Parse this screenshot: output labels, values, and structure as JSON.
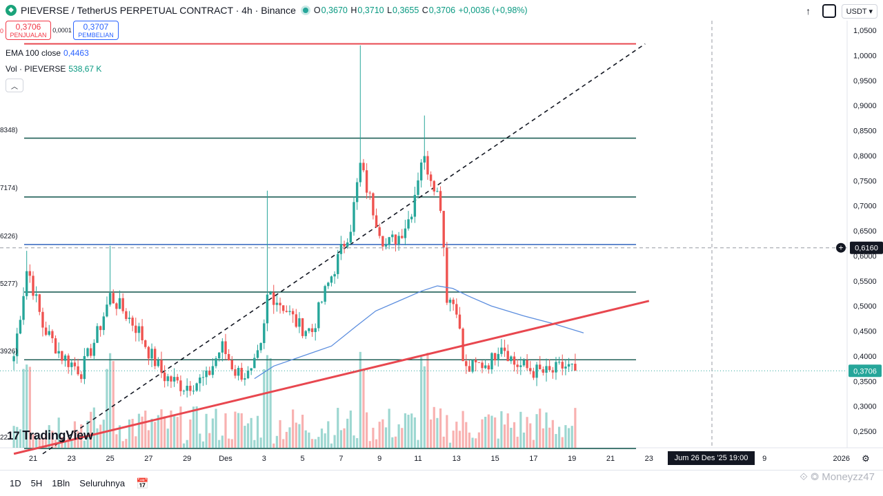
{
  "header": {
    "symbol_title": "PIEVERSE / TetherUS PERPETUAL CONTRACT · 4h · Binance",
    "ohlc": {
      "o_label": "O",
      "o": "0,3670",
      "h_label": "H",
      "h": "0,3710",
      "l_label": "L",
      "l": "0,3655",
      "c_label": "C",
      "c": "0,3706",
      "change": "+0,0036 (+0,98%)"
    },
    "currency": "USDT"
  },
  "trade": {
    "sell_edge": "0",
    "sell_price": "0,3706",
    "sell_label": "PENJUALAN",
    "spread": "0,0001",
    "buy_price": "0,3707",
    "buy_label": "PEMBELIAN"
  },
  "indicators": {
    "ema_label": "EMA 100 close",
    "ema_value": "0,4463",
    "vol_label": "Vol · PIEVERSE",
    "vol_value": "538,67 K"
  },
  "level_labels": [
    "8348)",
    "7174)",
    "6226)",
    "5277)",
    "3926)",
    "22"
  ],
  "colors": {
    "up": "#26a69a",
    "down": "#ef5350",
    "ema": "#5b8dde",
    "trend": "#e8474f",
    "level": "#1f5f56",
    "level_blue": "#3f6fc2"
  },
  "chart_data": {
    "type": "candlestick",
    "y_ticks": [
      "1,0500",
      "1,0000",
      "0,9500",
      "0,9000",
      "0,8500",
      "0,8000",
      "0,7500",
      "0,7000",
      "0,6500",
      "0,6000",
      "0,5500",
      "0,5000",
      "0,4500",
      "0,4000",
      "0,3500",
      "0,3000",
      "0,2500"
    ],
    "ylim": [
      0.22,
      1.05
    ],
    "x_ticks": [
      {
        "label": "21",
        "day": 21
      },
      {
        "label": "23",
        "day": 23
      },
      {
        "label": "25",
        "day": 25
      },
      {
        "label": "27",
        "day": 27
      },
      {
        "label": "29",
        "day": 29
      },
      {
        "label": "Des",
        "day": 31
      },
      {
        "label": "3",
        "day": 33
      },
      {
        "label": "5",
        "day": 35
      },
      {
        "label": "7",
        "day": 37
      },
      {
        "label": "9",
        "day": 39
      },
      {
        "label": "11",
        "day": 41
      },
      {
        "label": "13",
        "day": 43
      },
      {
        "label": "15",
        "day": 45
      },
      {
        "label": "17",
        "day": 47
      },
      {
        "label": "19",
        "day": 49
      },
      {
        "label": "21",
        "day": 51
      },
      {
        "label": "23",
        "day": 53
      },
      {
        "label": "9",
        "day": 59
      },
      {
        "label": "2026",
        "day": 63
      }
    ],
    "current_price": "0,3706",
    "current_value": 0.3706,
    "crosshair_price": "0,6160",
    "crosshair_value": 0.616,
    "crosshair_time": "Jum 26 Des '25   19:00",
    "horizontal_levels": [
      1.023,
      0.8348,
      0.7174,
      0.6226,
      0.5277,
      0.3926,
      0.2155
    ],
    "trend_line": {
      "start": [
        20.0,
        0.205
      ],
      "end": [
        53.0,
        0.51
      ]
    },
    "dashed_line": {
      "start": [
        21.5,
        0.205
      ],
      "end": [
        52.8,
        1.023
      ]
    },
    "anchors": [
      {
        "day": 20.0,
        "price": 0.4
      },
      {
        "day": 20.7,
        "price": 0.58
      },
      {
        "day": 21.5,
        "price": 0.46
      },
      {
        "day": 22.5,
        "price": 0.4
      },
      {
        "day": 23.5,
        "price": 0.37
      },
      {
        "day": 24.3,
        "price": 0.44
      },
      {
        "day": 25.0,
        "price": 0.52
      },
      {
        "day": 25.7,
        "price": 0.49
      },
      {
        "day": 26.5,
        "price": 0.45
      },
      {
        "day": 27.0,
        "price": 0.41
      },
      {
        "day": 27.8,
        "price": 0.36
      },
      {
        "day": 28.8,
        "price": 0.34
      },
      {
        "day": 30.0,
        "price": 0.355
      },
      {
        "day": 30.8,
        "price": 0.42
      },
      {
        "day": 31.5,
        "price": 0.37
      },
      {
        "day": 32.3,
        "price": 0.36
      },
      {
        "day": 32.9,
        "price": 0.42
      },
      {
        "day": 33.2,
        "price": 0.53
      },
      {
        "day": 34.0,
        "price": 0.5
      },
      {
        "day": 34.8,
        "price": 0.46
      },
      {
        "day": 35.5,
        "price": 0.45
      },
      {
        "day": 36.0,
        "price": 0.51
      },
      {
        "day": 36.8,
        "price": 0.59
      },
      {
        "day": 37.5,
        "price": 0.66
      },
      {
        "day": 38.0,
        "price": 0.78
      },
      {
        "day": 38.6,
        "price": 0.7
      },
      {
        "day": 39.3,
        "price": 0.62
      },
      {
        "day": 40.0,
        "price": 0.64
      },
      {
        "day": 40.6,
        "price": 0.68
      },
      {
        "day": 41.2,
        "price": 0.8
      },
      {
        "day": 41.8,
        "price": 0.75
      },
      {
        "day": 42.2,
        "price": 0.7
      },
      {
        "day": 42.5,
        "price": 0.52
      },
      {
        "day": 43.0,
        "price": 0.5
      },
      {
        "day": 43.4,
        "price": 0.37
      },
      {
        "day": 44.0,
        "price": 0.38
      },
      {
        "day": 44.8,
        "price": 0.39
      },
      {
        "day": 45.3,
        "price": 0.43
      },
      {
        "day": 46.0,
        "price": 0.385
      },
      {
        "day": 47.0,
        "price": 0.37
      },
      {
        "day": 47.8,
        "price": 0.365
      },
      {
        "day": 48.6,
        "price": 0.38
      },
      {
        "day": 49.3,
        "price": 0.3706
      }
    ],
    "spikes": [
      {
        "day": 38.05,
        "high": 1.02
      },
      {
        "day": 41.3,
        "high": 0.88
      },
      {
        "day": 33.2,
        "high": 0.73
      },
      {
        "day": 25.0,
        "high": 0.62
      },
      {
        "day": 20.7,
        "high": 0.61
      }
    ],
    "ema": [
      {
        "day": 32.5,
        "price": 0.355
      },
      {
        "day": 33.5,
        "price": 0.38
      },
      {
        "day": 35.0,
        "price": 0.4
      },
      {
        "day": 36.5,
        "price": 0.42
      },
      {
        "day": 37.8,
        "price": 0.46
      },
      {
        "day": 38.8,
        "price": 0.49
      },
      {
        "day": 40.0,
        "price": 0.51
      },
      {
        "day": 41.2,
        "price": 0.53
      },
      {
        "day": 42.0,
        "price": 0.54
      },
      {
        "day": 42.8,
        "price": 0.535
      },
      {
        "day": 43.6,
        "price": 0.52
      },
      {
        "day": 44.8,
        "price": 0.5
      },
      {
        "day": 46.5,
        "price": 0.48
      },
      {
        "day": 48.0,
        "price": 0.465
      },
      {
        "day": 49.6,
        "price": 0.4463
      }
    ]
  },
  "bottom_bar": {
    "ranges": [
      "1D",
      "5H",
      "1Bln",
      "Seluruhnya"
    ],
    "watermark": "⟐ ◎ Moneyzz47"
  },
  "brand": {
    "name": "TradingView",
    "mark": "17"
  }
}
